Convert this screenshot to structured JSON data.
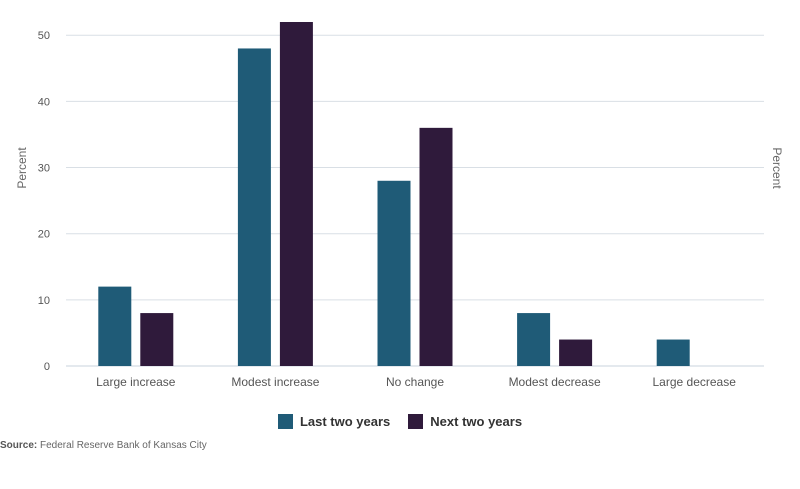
{
  "chart_data": {
    "type": "bar",
    "categories": [
      "Large increase",
      "Modest increase",
      "No change",
      "Modest decrease",
      "Large decrease"
    ],
    "series": [
      {
        "name": "Last two years",
        "color": "#1f5b77",
        "values": [
          12,
          48,
          28,
          8,
          4
        ]
      },
      {
        "name": "Next two years",
        "color": "#2f1a3b",
        "values": [
          8,
          52,
          36,
          4,
          0
        ]
      }
    ],
    "ylabel": "Percent",
    "ylabel_right": "Percent",
    "ylim": [
      0,
      52
    ],
    "yticks": [
      0,
      10,
      20,
      30,
      40,
      50
    ],
    "grid": true,
    "legend": "bottom-center"
  },
  "source": {
    "label": "Source:",
    "text": "Federal Reserve Bank of Kansas City"
  }
}
